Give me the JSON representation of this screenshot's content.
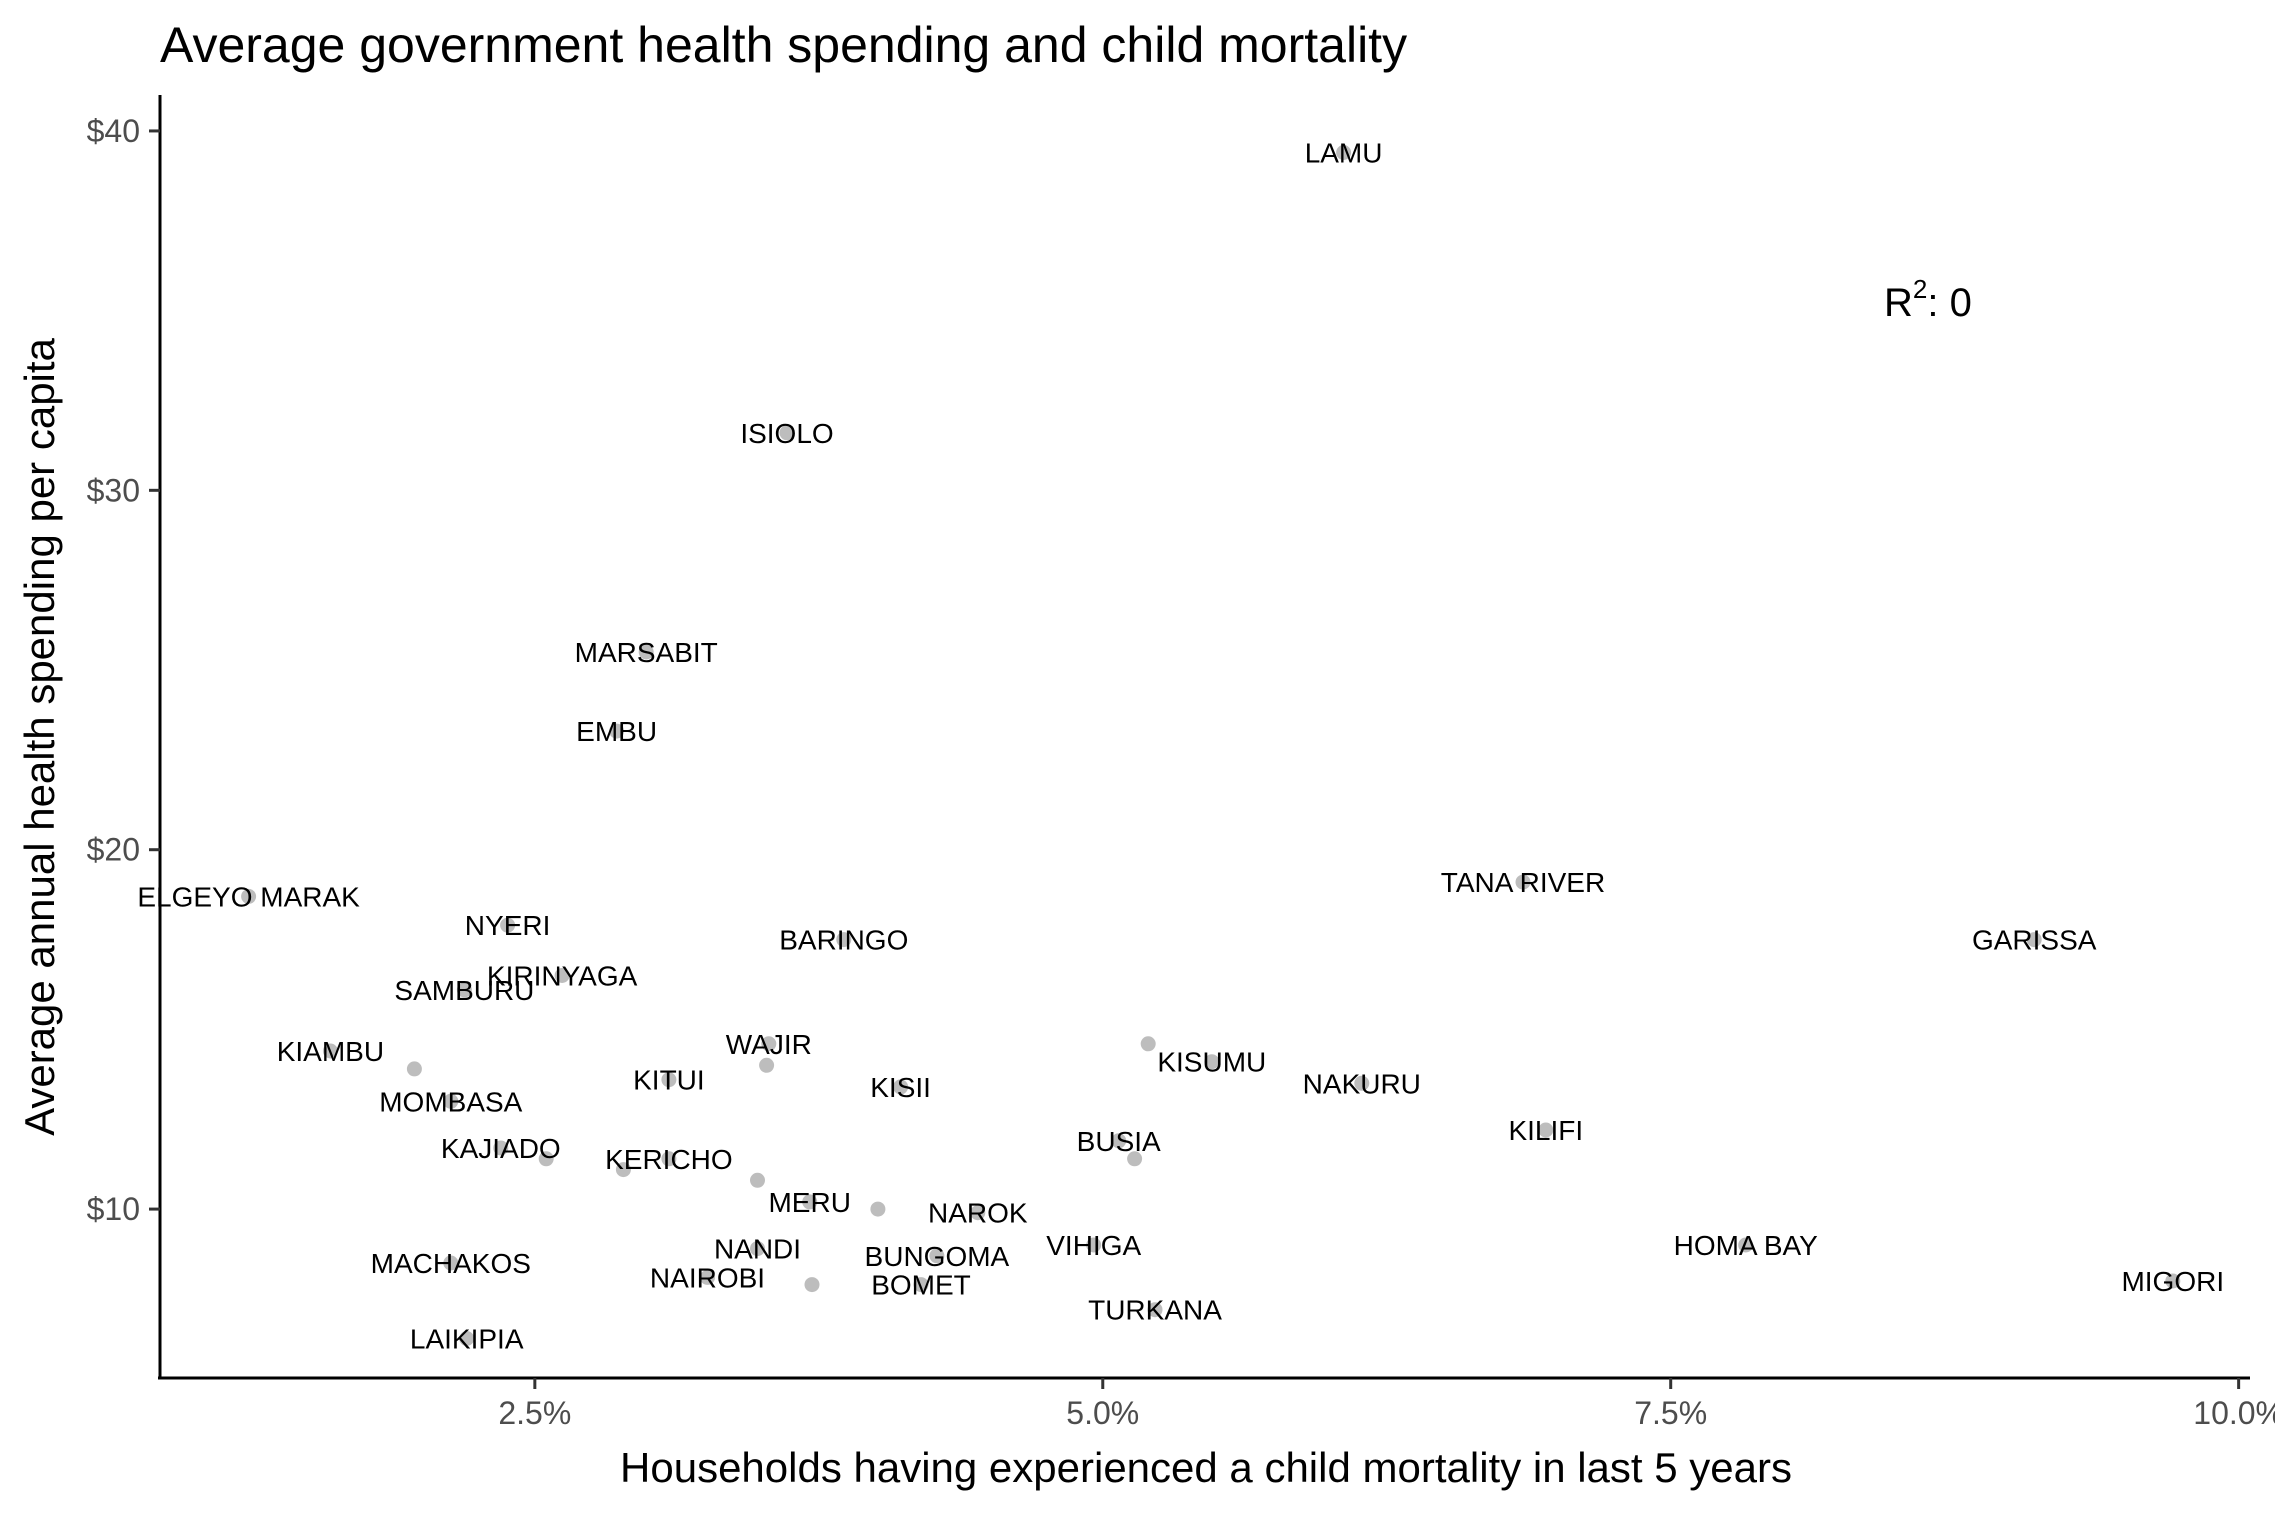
{
  "chart_data": {
    "type": "scatter",
    "title": "Average government health spending and child mortality",
    "xlabel": "Households having experienced a child mortality in last 5 years",
    "ylabel": "Average annual health spending per capita",
    "xlim": [
      0.0085,
      0.1005
    ],
    "ylim": [
      5.3,
      41.0
    ],
    "x_ticks": [
      {
        "value": 0.025,
        "label": "2.5%"
      },
      {
        "value": 0.05,
        "label": "5.0%"
      },
      {
        "value": 0.075,
        "label": "7.5%"
      },
      {
        "value": 0.1,
        "label": "10.0%"
      }
    ],
    "y_ticks": [
      {
        "value": 10,
        "label": "$10"
      },
      {
        "value": 20,
        "label": "$20"
      },
      {
        "value": 30,
        "label": "$30"
      },
      {
        "value": 40,
        "label": "$40"
      }
    ],
    "annotation": {
      "prefix": "R",
      "superscript": "2",
      "suffix": ": 0"
    },
    "grid": false,
    "point_color": "#bdbdbd",
    "points": [
      {
        "label": "LAMU",
        "x": 0.0606,
        "y": 39.4
      },
      {
        "label": "ISIOLO",
        "x": 0.0361,
        "y": 31.6
      },
      {
        "label": "MARSABIT",
        "x": 0.0299,
        "y": 25.5
      },
      {
        "label": "EMBU",
        "x": 0.0286,
        "y": 23.3
      },
      {
        "label": "ELGEYO MARAK",
        "x": 0.0124,
        "y": 18.7
      },
      {
        "label": "NYERI",
        "x": 0.0238,
        "y": 17.9
      },
      {
        "label": "BARINGO",
        "x": 0.0386,
        "y": 17.5
      },
      {
        "label": "KIRINYAGA",
        "x": 0.0262,
        "y": 16.5
      },
      {
        "label": "SAMBURU",
        "x": 0.0219,
        "y": 16.1
      },
      {
        "label": "WAJIR",
        "x": 0.0353,
        "y": 14.6
      },
      {
        "label": "KIAMBU",
        "x": 0.016,
        "y": 14.4
      },
      {
        "label": "KITUI",
        "x": 0.0309,
        "y": 13.6
      },
      {
        "label": "KISII",
        "x": 0.0411,
        "y": 13.4
      },
      {
        "label": "KISUMU",
        "x": 0.0548,
        "y": 14.1
      },
      {
        "label": "NAKURU",
        "x": 0.0614,
        "y": 13.5
      },
      {
        "label": "MOMBASA",
        "x": 0.0213,
        "y": 13.0
      },
      {
        "label": "KAJIADO",
        "x": 0.0235,
        "y": 11.7
      },
      {
        "label": "KERICHO",
        "x": 0.0309,
        "y": 11.4
      },
      {
        "label": "BUSIA",
        "x": 0.0507,
        "y": 11.9
      },
      {
        "label": "KILIFI",
        "x": 0.0695,
        "y": 12.2
      },
      {
        "label": "MERU",
        "x": 0.0371,
        "y": 10.2
      },
      {
        "label": "NAROK",
        "x": 0.0445,
        "y": 9.9
      },
      {
        "label": "NANDI",
        "x": 0.0348,
        "y": 8.9
      },
      {
        "label": "BUNGOMA",
        "x": 0.0427,
        "y": 8.7
      },
      {
        "label": "VIHIGA",
        "x": 0.0496,
        "y": 9.0
      },
      {
        "label": "HOMA BAY",
        "x": 0.0783,
        "y": 9.0
      },
      {
        "label": "MACHAKOS",
        "x": 0.0213,
        "y": 8.5
      },
      {
        "label": "NAIROBI",
        "x": 0.0326,
        "y": 8.1
      },
      {
        "label": "BOMET",
        "x": 0.042,
        "y": 7.9
      },
      {
        "label": "MIGORI",
        "x": 0.0971,
        "y": 8.0
      },
      {
        "label": "TURKANA",
        "x": 0.0523,
        "y": 7.2
      },
      {
        "label": "LAIKIPIA",
        "x": 0.022,
        "y": 6.4
      },
      {
        "label": "TANA RIVER",
        "x": 0.0685,
        "y": 19.1
      },
      {
        "label": "GARISSA",
        "x": 0.091,
        "y": 17.5
      },
      {
        "label": "",
        "x": 0.0197,
        "y": 13.9
      },
      {
        "label": "",
        "x": 0.0352,
        "y": 14.0
      },
      {
        "label": "",
        "x": 0.052,
        "y": 14.6
      },
      {
        "label": "",
        "x": 0.0255,
        "y": 11.4
      },
      {
        "label": "",
        "x": 0.0289,
        "y": 11.1
      },
      {
        "label": "",
        "x": 0.0348,
        "y": 10.8
      },
      {
        "label": "",
        "x": 0.0401,
        "y": 10.0
      },
      {
        "label": "",
        "x": 0.0514,
        "y": 11.4
      },
      {
        "label": "",
        "x": 0.0372,
        "y": 7.9
      }
    ]
  }
}
